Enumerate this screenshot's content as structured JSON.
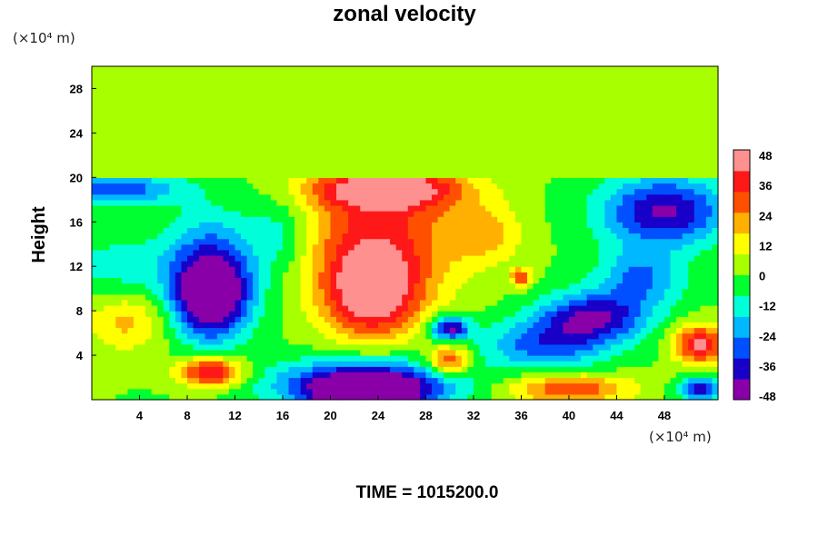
{
  "chart_data": {
    "type": "heatmap",
    "title": "zonal velocity",
    "ylabel": "Height",
    "y_unit": "(×10⁴ m)",
    "x_unit": "(×10⁴ m)",
    "xlabel": "",
    "xlim": [
      0,
      52.5
    ],
    "ylim": [
      0,
      30
    ],
    "x_ticks": [
      "4",
      "8",
      "12",
      "16",
      "20",
      "24",
      "28",
      "32",
      "36",
      "40",
      "44",
      "48"
    ],
    "y_ticks": [
      "4",
      "8",
      "12",
      "16",
      "20",
      "24",
      "28"
    ],
    "colorbar": {
      "ticks": [
        "48",
        "36",
        "24",
        "12",
        "0",
        "-12",
        "-24",
        "-36",
        "-48"
      ],
      "range": [
        -48,
        48
      ],
      "colors": [
        "#8a00a8",
        "#1800c8",
        "#0050ff",
        "#00b8ff",
        "#00ffd8",
        "#00ff30",
        "#a8ff00",
        "#ffff00",
        "#ffb000",
        "#ff5000",
        "#ff1818",
        "#ff9090"
      ]
    },
    "background_above_z": {
      "z_min": 20.2,
      "value": 0
    },
    "features": [
      {
        "x": 23.5,
        "z": 9.5,
        "rx": 4.5,
        "rz": 4.5,
        "value": 45
      },
      {
        "x": 24,
        "z": 15,
        "rx": 8,
        "rz": 7,
        "value": 32
      },
      {
        "x": 25,
        "z": 19,
        "rx": 7,
        "rz": 2,
        "value": 40
      },
      {
        "x": 10,
        "z": 9,
        "rx": 3.5,
        "rz": 4,
        "value": -45
      },
      {
        "x": 10,
        "z": 12,
        "rx": 4.5,
        "rz": 5.5,
        "value": -30
      },
      {
        "x": 48,
        "z": 17,
        "rx": 6,
        "rz": 3.5,
        "value": -42
      },
      {
        "x": 42,
        "z": 7.5,
        "rx": 5,
        "rz": 2.5,
        "value": -40
      },
      {
        "x": 38,
        "z": 5,
        "rx": 6,
        "rz": 2.5,
        "value": -28
      },
      {
        "x": 23,
        "z": 0.5,
        "rx": 5,
        "rz": 2,
        "value": -50
      },
      {
        "x": 23,
        "z": 1.5,
        "rx": 9,
        "rz": 2.5,
        "value": -40
      },
      {
        "x": 10,
        "z": 2.5,
        "rx": 3,
        "rz": 1.5,
        "value": 45
      },
      {
        "x": 40,
        "z": 1,
        "rx": 6,
        "rz": 1.5,
        "value": 32
      },
      {
        "x": 51,
        "z": 5,
        "rx": 2.5,
        "rz": 2,
        "value": 42
      },
      {
        "x": 30,
        "z": 3.5,
        "rx": 2,
        "rz": 1.5,
        "value": 36
      },
      {
        "x": 30,
        "z": 6.5,
        "rx": 1.8,
        "rz": 1.2,
        "value": -45
      },
      {
        "x": 2,
        "z": 19,
        "rx": 6,
        "rz": 1.5,
        "value": -30
      },
      {
        "x": 16,
        "z": 15,
        "rx": 3,
        "rz": 4,
        "value": -15
      },
      {
        "x": 3,
        "z": 7,
        "rx": 4,
        "rz": 3,
        "value": 18
      },
      {
        "x": 2,
        "z": 12,
        "rx": 5,
        "rz": 3,
        "value": -12
      },
      {
        "x": 33,
        "z": 15,
        "rx": 3.5,
        "rz": 3,
        "value": 16
      },
      {
        "x": 36,
        "z": 11,
        "rx": 1,
        "rz": 1,
        "value": 30
      },
      {
        "x": 46,
        "z": 11,
        "rx": 4,
        "rz": 3,
        "value": -25
      },
      {
        "x": 51,
        "z": 1,
        "rx": 2,
        "rz": 1.2,
        "value": -40
      }
    ]
  },
  "footer": {
    "time_text": "TIME = 1015200.0"
  }
}
